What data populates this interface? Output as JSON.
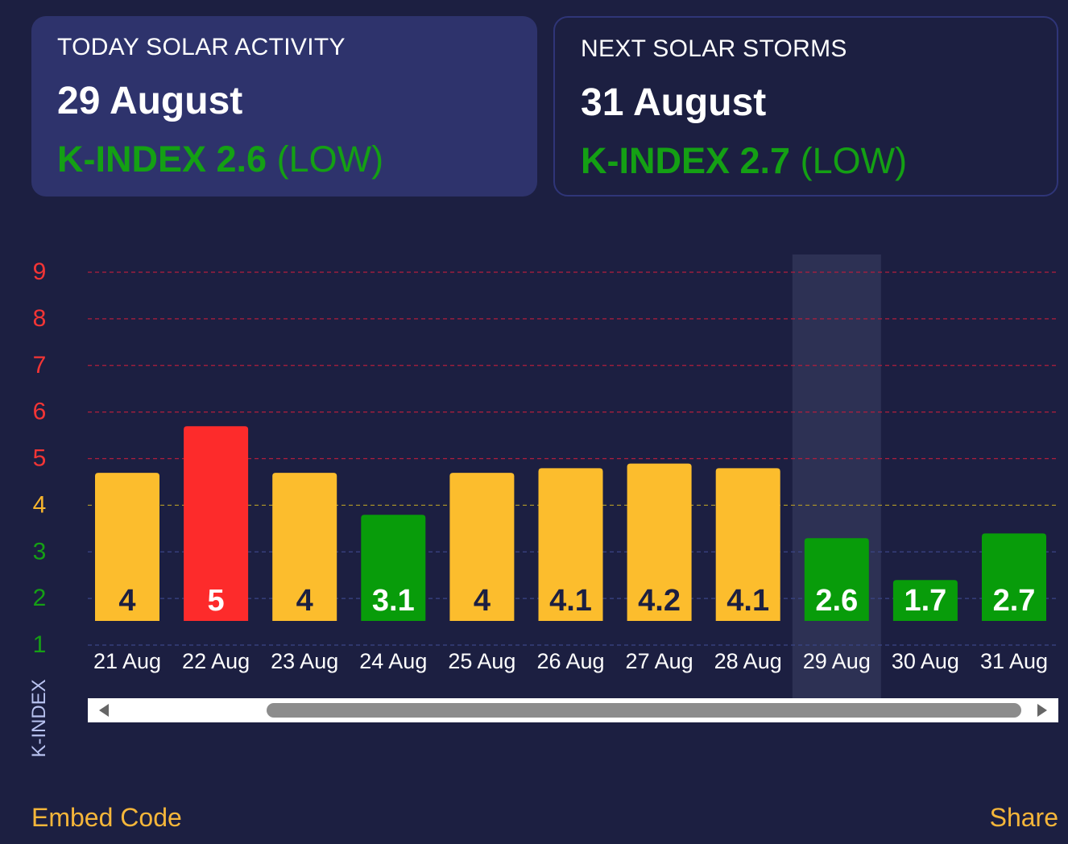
{
  "today": {
    "label": "TODAY SOLAR ACTIVITY",
    "date": "29 August",
    "kindex": "K-INDEX 2.6",
    "level": "(LOW)"
  },
  "next": {
    "label": "NEXT SOLAR STORMS",
    "date": "31 August",
    "kindex": "K-INDEX 2.7",
    "level": "(LOW)"
  },
  "colors": {
    "background": "#1c1f41",
    "low": "#089c0a",
    "moderate": "#fcbd2d",
    "storm": "#fd2b2b",
    "highlight": "#2d3154"
  },
  "chart_data": {
    "type": "bar",
    "categories": [
      "21 Aug",
      "22 Aug",
      "23 Aug",
      "24 Aug",
      "25 Aug",
      "26 Aug",
      "27 Aug",
      "28 Aug",
      "29 Aug",
      "30 Aug",
      "31 Aug"
    ],
    "values": [
      4,
      5,
      4,
      3.1,
      4,
      4.1,
      4.2,
      4.1,
      2.6,
      1.7,
      2.7
    ],
    "labels": [
      "4",
      "5",
      "4",
      "3.1",
      "4",
      "4.1",
      "4.2",
      "4.1",
      "2.6",
      "1.7",
      "2.7"
    ],
    "levels": [
      "moderate",
      "storm",
      "moderate",
      "low",
      "moderate",
      "moderate",
      "moderate",
      "moderate",
      "low",
      "low",
      "low"
    ],
    "highlight_index": 8,
    "ylabel": "K-INDEX",
    "y_ticks": [
      {
        "v": 9,
        "label": "9",
        "color": "#f43535"
      },
      {
        "v": 8,
        "label": "8",
        "color": "#f43535"
      },
      {
        "v": 7,
        "label": "7",
        "color": "#f43535"
      },
      {
        "v": 6,
        "label": "6",
        "color": "#f43535"
      },
      {
        "v": 5,
        "label": "5",
        "color": "#f43535"
      },
      {
        "v": 4,
        "label": "4",
        "color": "#f7b52d"
      },
      {
        "v": 3,
        "label": "3",
        "color": "#15a015"
      },
      {
        "v": 2,
        "label": "2",
        "color": "#15a015"
      },
      {
        "v": 1,
        "label": "1",
        "color": "#15a015"
      }
    ],
    "grid_colors": {
      "storm": "#b21e3c",
      "moderate": "#a68f2a",
      "low": "#3b4687"
    },
    "ylim": [
      1,
      9
    ],
    "grid": true,
    "legend": "none"
  },
  "footer": {
    "embed": "Embed Code",
    "share": "Share"
  }
}
